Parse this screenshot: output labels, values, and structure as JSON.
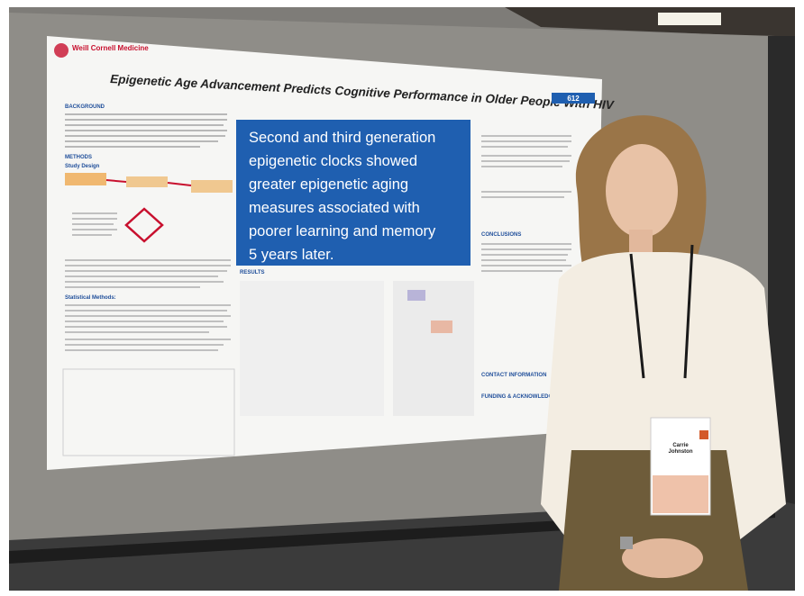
{
  "poster": {
    "logo": "Weill Cornell Medicine",
    "title": "Epigenetic Age Advancement Predicts Cognitive Performance in Older People With HIV",
    "number": "612",
    "highlight": [
      "Second and third generation",
      "epigenetic clocks showed",
      "greater epigenetic aging",
      "measures associated with",
      "poorer learning and memory",
      "5 years later."
    ],
    "sections": {
      "background": "BACKGROUND",
      "methods": "METHODS",
      "study_design": "Study Design",
      "statistical_methods": "Statistical Methods:",
      "results": "RESULTS",
      "conclusions": "CONCLUSIONS",
      "contact": "CONTACT INFORMATION",
      "funding": "FUNDING & ACKNOWLEDGEMENTS"
    }
  },
  "badge": {
    "name": [
      "Carrie",
      "Johnston"
    ]
  }
}
